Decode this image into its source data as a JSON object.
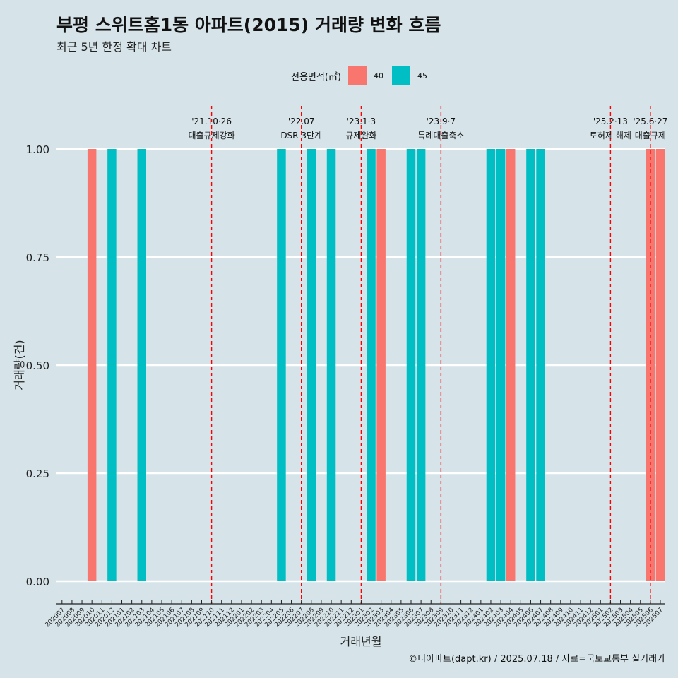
{
  "chart_data": {
    "type": "bar",
    "title": "부평 스위트홈1동 아파트(2015) 거래량 변화 흐름",
    "subtitle": "최근 5년 한정 확대 차트",
    "xlabel": "거래년월",
    "ylabel": "거래량(건)",
    "ylim": [
      0,
      1
    ],
    "y_ticks": [
      "0.00",
      "0.25",
      "0.50",
      "0.75",
      "1.00"
    ],
    "legend": {
      "title": "전용면적(㎡)",
      "position": "top",
      "entries": [
        {
          "label": "40",
          "color": "#f8766d"
        },
        {
          "label": "45",
          "color": "#00bfc4"
        }
      ]
    },
    "categories": [
      "202007",
      "202008",
      "202009",
      "202010",
      "202011",
      "202012",
      "202101",
      "202102",
      "202103",
      "202104",
      "202105",
      "202106",
      "202107",
      "202108",
      "202109",
      "202110",
      "202111",
      "202112",
      "202201",
      "202202",
      "202203",
      "202204",
      "202205",
      "202206",
      "202207",
      "202208",
      "202209",
      "202210",
      "202211",
      "202212",
      "202301",
      "202302",
      "202303",
      "202304",
      "202305",
      "202306",
      "202307",
      "202308",
      "202309",
      "202310",
      "202311",
      "202312",
      "202401",
      "202402",
      "202403",
      "202404",
      "202405",
      "202406",
      "202407",
      "202408",
      "202409",
      "202410",
      "202411",
      "202412",
      "202501",
      "202502",
      "202503",
      "202504",
      "202505",
      "202506",
      "202507"
    ],
    "series": [
      {
        "name": "40",
        "color": "#f8766d",
        "values": [
          0,
          0,
          0,
          1,
          0,
          0,
          0,
          0,
          0,
          0,
          0,
          0,
          0,
          0,
          0,
          0,
          0,
          0,
          0,
          0,
          0,
          0,
          0,
          0,
          0,
          0,
          0,
          0,
          0,
          0,
          0,
          0,
          1,
          0,
          0,
          0,
          0,
          0,
          0,
          0,
          0,
          0,
          0,
          0,
          0,
          1,
          0,
          0,
          0,
          0,
          0,
          0,
          0,
          0,
          0,
          0,
          0,
          0,
          0,
          1,
          1
        ]
      },
      {
        "name": "45",
        "color": "#00bfc4",
        "values": [
          0,
          0,
          0,
          0,
          0,
          1,
          0,
          0,
          1,
          0,
          0,
          0,
          0,
          0,
          0,
          0,
          0,
          0,
          0,
          0,
          0,
          0,
          1,
          0,
          0,
          1,
          0,
          1,
          0,
          0,
          0,
          1,
          0,
          0,
          0,
          1,
          1,
          0,
          0,
          0,
          0,
          0,
          0,
          1,
          1,
          0,
          0,
          1,
          1,
          0,
          0,
          0,
          0,
          0,
          0,
          0,
          0,
          0,
          0,
          0,
          0
        ]
      }
    ],
    "annotations": [
      {
        "month": "202110",
        "date": "'21.10·26",
        "label": "대출규제강화"
      },
      {
        "month": "202207",
        "date": "'22.07",
        "label": "DSR 3단계"
      },
      {
        "month": "202301",
        "date": "'23.1·3",
        "label": "규제완화"
      },
      {
        "month": "202309",
        "date": "'23.9·7",
        "label": "특례대출축소"
      },
      {
        "month": "202502",
        "date": "'25.2·13",
        "label": "토허제 해제"
      },
      {
        "month": "202506",
        "date": "'25.6·27",
        "label": "대출규제"
      }
    ]
  },
  "caption": "©디아파트(dapt.kr) / 2025.07.18 / 자료=국토교통부 실거래가"
}
